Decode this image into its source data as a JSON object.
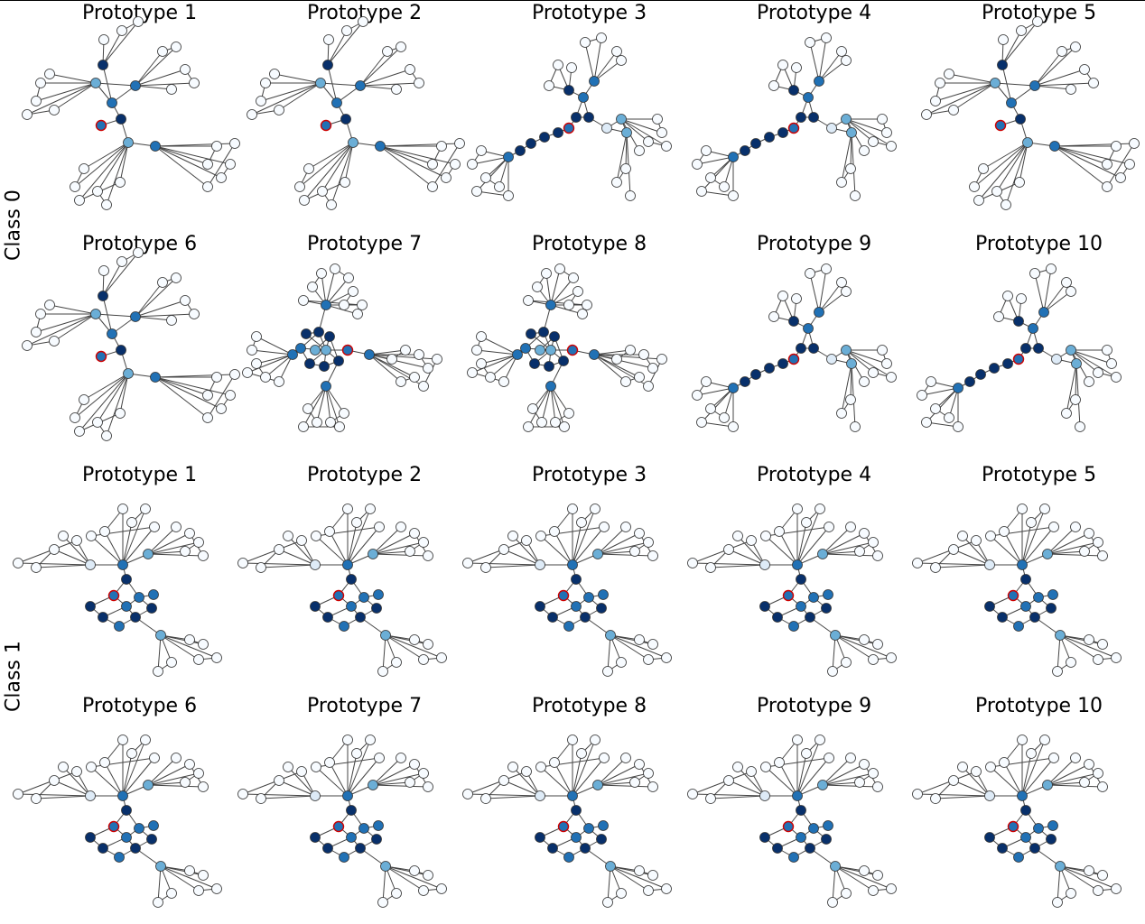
{
  "figure": {
    "rows": [
      {
        "class_label": "Class 0",
        "prototypes": [
          {
            "title": "Prototype 1",
            "graph": "a"
          },
          {
            "title": "Prototype 2",
            "graph": "a"
          },
          {
            "title": "Prototype 3",
            "graph": "b"
          },
          {
            "title": "Prototype 4",
            "graph": "b"
          },
          {
            "title": "Prototype 5",
            "graph": "a"
          }
        ]
      },
      {
        "class_label": "",
        "prototypes": [
          {
            "title": "Prototype 6",
            "graph": "a"
          },
          {
            "title": "Prototype 7",
            "graph": "c"
          },
          {
            "title": "Prototype 8",
            "graph": "c"
          },
          {
            "title": "Prototype 9",
            "graph": "b"
          },
          {
            "title": "Prototype 10",
            "graph": "b"
          }
        ]
      },
      {
        "class_label": "",
        "prototypes": [
          {
            "title": "Prototype 1",
            "graph": "d"
          },
          {
            "title": "Prototype 2",
            "graph": "d"
          },
          {
            "title": "Prototype 3",
            "graph": "d"
          },
          {
            "title": "Prototype 4",
            "graph": "d"
          },
          {
            "title": "Prototype 5",
            "graph": "d"
          }
        ]
      },
      {
        "class_label": "Class 1",
        "prototypes": [
          {
            "title": "Prototype 6",
            "graph": "d"
          },
          {
            "title": "Prototype 7",
            "graph": "d"
          },
          {
            "title": "Prototype 8",
            "graph": "d"
          },
          {
            "title": "Prototype 9",
            "graph": "d"
          },
          {
            "title": "Prototype 10",
            "graph": "d"
          }
        ]
      }
    ],
    "colors": {
      "node_empty": "#f7fbff",
      "node_pale": "#deebf7",
      "node_light": "#6baed6",
      "node_mid": "#2171b5",
      "node_dark": "#08306b",
      "edge": "#444444",
      "outline": "#333333",
      "highlight": "#cc0000"
    }
  }
}
